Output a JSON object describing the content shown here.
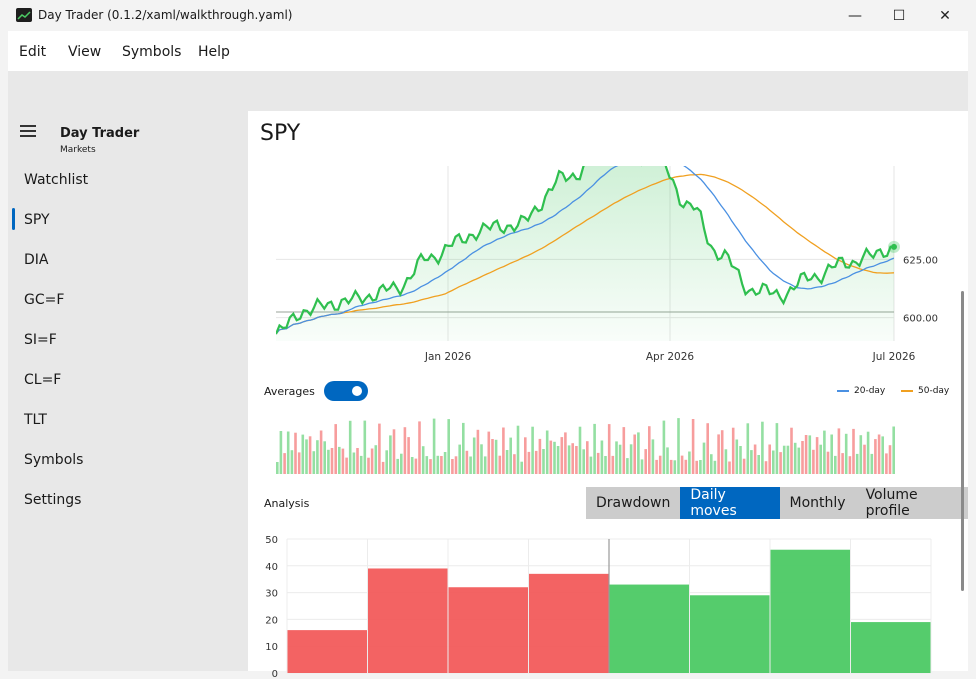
{
  "window": {
    "title": "Day Trader (0.1.2/xaml/walkthrough.yaml)",
    "controls": {
      "minimize": "—",
      "maximize": "☐",
      "close": "✕"
    }
  },
  "menu": [
    "Edit",
    "View",
    "Symbols",
    "Help"
  ],
  "sidebar": {
    "title": "Day Trader",
    "subtitle": "Markets",
    "items": [
      "Watchlist",
      "SPY",
      "DIA",
      "GC=F",
      "SI=F",
      "CL=F",
      "TLT",
      "Symbols",
      "Settings"
    ],
    "selected": "SPY"
  },
  "main": {
    "symbol": "SPY",
    "averages_label": "Averages",
    "averages_on": true,
    "analysis_label": "Analysis",
    "analysis_tabs": [
      "Drawdown",
      "Daily moves",
      "Monthly",
      "Volume profile"
    ],
    "active_tab": "Daily moves"
  },
  "colors": {
    "accent": "#0067c0",
    "price": "#2fbf4f",
    "ma20": "#4a90e2",
    "ma50": "#f0a020",
    "down": "#f25b5b",
    "up": "#4cc964"
  },
  "chart_data": [
    {
      "type": "line",
      "x_ticks": [
        "Jan 2026",
        "Apr 2026",
        "Jul 2026"
      ],
      "y_ticks": [
        600.0,
        625.0
      ],
      "series": [
        {
          "name": "20-day"
        },
        {
          "name": "50-day"
        }
      ],
      "legend_position": "top-right",
      "grid": true
    },
    {
      "type": "bar",
      "y_ticks": [
        0,
        10,
        20,
        30,
        40,
        50
      ],
      "values": [
        16,
        39,
        32,
        37,
        33,
        29,
        46,
        19
      ],
      "colors": [
        "down",
        "down",
        "down",
        "down",
        "up",
        "up",
        "up",
        "up"
      ],
      "ylim": [
        0,
        50
      ],
      "grid": true
    }
  ]
}
